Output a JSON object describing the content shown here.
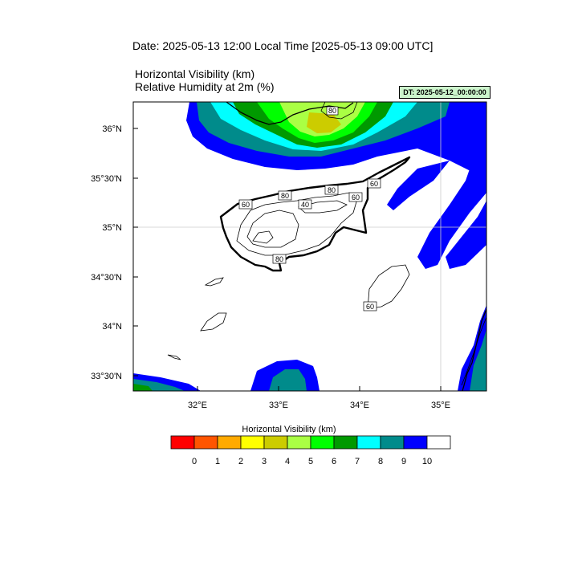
{
  "header": {
    "date_line": "Date: 2025-05-13  12:00 Local Time [2025-05-13  09:00 UTC]",
    "variable_1": "Horizontal Visibility   (km)",
    "variable_2": "Relative Humidity at 2m   (%)",
    "dt_badge": "DT: 2025-05-12_00:00:00"
  },
  "map": {
    "lat_labels": [
      "36°N",
      "35°30'N",
      "35°N",
      "34°30'N",
      "34°N",
      "33°30'N"
    ],
    "lon_labels": [
      "32°E",
      "33°E",
      "34°E",
      "35°E"
    ],
    "contour_labels": [
      "80",
      "60",
      "80",
      "80",
      "40",
      "60",
      "60",
      "80",
      "60"
    ]
  },
  "colorbar": {
    "title": "Horizontal Visibility  (km)",
    "tick_labels": [
      "0",
      "1",
      "2",
      "3",
      "4",
      "5",
      "6",
      "7",
      "8",
      "9",
      "10"
    ],
    "colors": [
      "#ff0000",
      "#ff5500",
      "#ffaa00",
      "#ffff00",
      "#cccc00",
      "#aaff44",
      "#00ff00",
      "#009900",
      "#00ffff",
      "#008b8b",
      "#0000ff",
      "#ffffff"
    ]
  }
}
